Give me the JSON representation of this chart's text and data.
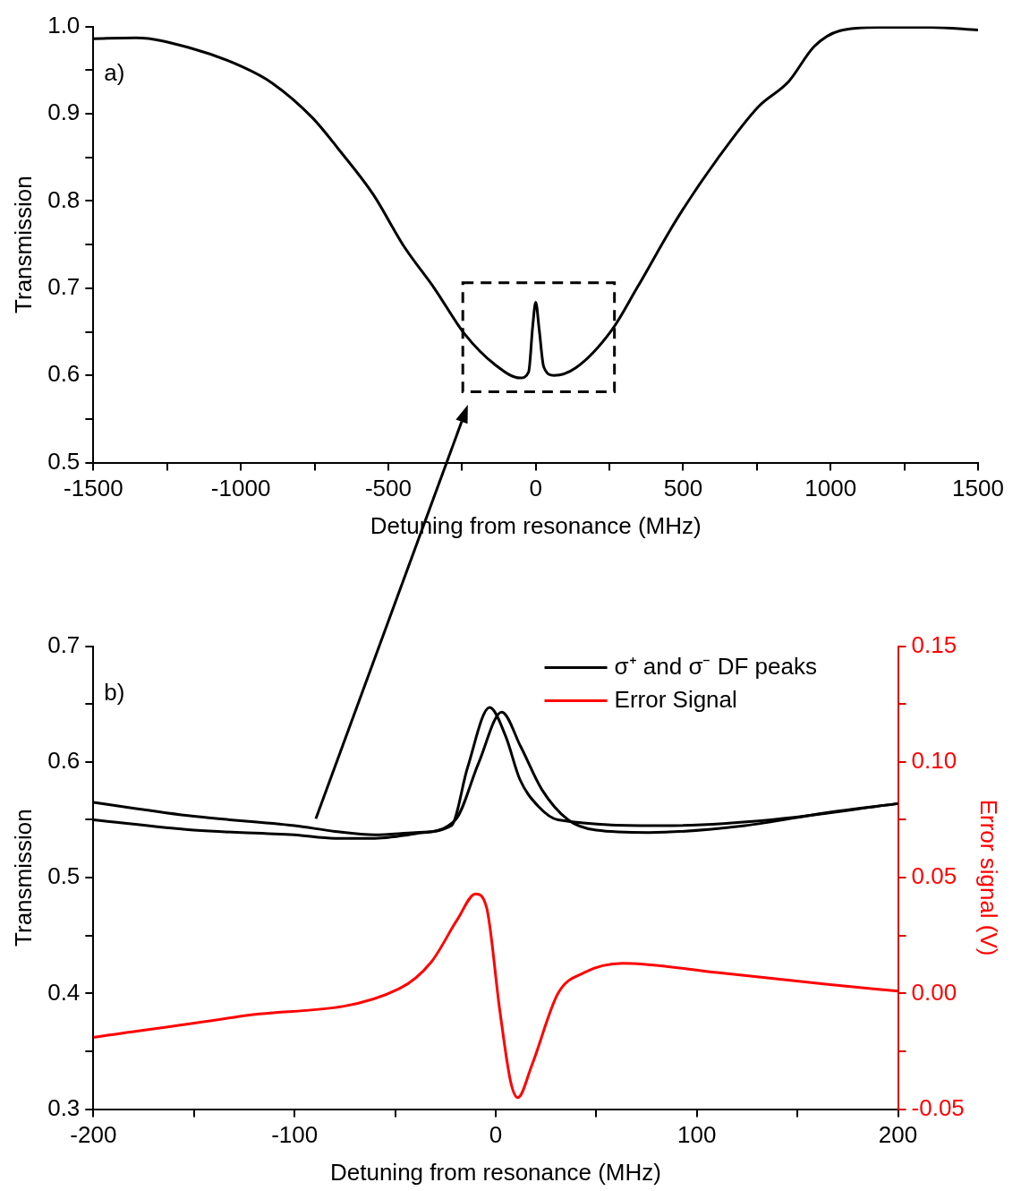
{
  "chart_data": [
    {
      "type": "line",
      "xlabel": "Detuning from resonance (MHz)",
      "ylabel": "Transmission",
      "annotations": [
        "a)"
      ],
      "color": "#000000",
      "marker": "none",
      "grid": false,
      "x": [
        -1500,
        -1356,
        -1167,
        -996,
        -893,
        -756,
        -670,
        -550,
        -447,
        -344,
        -240,
        -137,
        -52,
        -24,
        -10,
        0,
        12,
        27,
        62,
        137,
        258,
        343,
        480,
        618,
        755,
        858,
        944,
        1030,
        1167,
        1338,
        1500
      ],
      "values": [
        0.986,
        0.987,
        0.975,
        0.954,
        0.935,
        0.895,
        0.86,
        0.807,
        0.748,
        0.7,
        0.647,
        0.612,
        0.597,
        0.604,
        0.657,
        0.684,
        0.652,
        0.61,
        0.6,
        0.609,
        0.652,
        0.7,
        0.78,
        0.849,
        0.908,
        0.937,
        0.977,
        0.995,
        0.999,
        0.999,
        0.996
      ],
      "xlim": [
        -1500,
        1500
      ],
      "xticks": [
        -1500,
        {
          "value": -1250,
          "label": null
        },
        -1000,
        {
          "value": -750,
          "label": null
        },
        -500,
        {
          "value": -250,
          "label": null
        },
        0,
        {
          "value": 250,
          "label": null
        },
        500,
        {
          "value": 750,
          "label": null
        },
        1000,
        {
          "value": 1250,
          "label": null
        },
        1500
      ],
      "ylim": [
        0.5,
        1.0
      ],
      "yticks": [
        0.5,
        {
          "value": 0.55,
          "label": null
        },
        0.6,
        {
          "value": 0.65,
          "label": null
        },
        0.7,
        {
          "value": 0.75,
          "label": null
        },
        0.8,
        {
          "value": 0.85,
          "label": null
        },
        0.9,
        {
          "value": 0.95,
          "label": null
        },
        {
          "value": 1,
          "label": "1.0"
        }
      ]
    },
    {
      "type": "line",
      "xlabel": "Detuning from resonance (MHz)",
      "ylabel": "Transmission",
      "y2label": "Error signal (V)",
      "annotations": [
        "b)"
      ],
      "marker": "none",
      "grid": false,
      "legend": "top right",
      "series": [
        {
          "name": "σ⁺ and σ⁻ DF peaks",
          "color": "#000000",
          "x": [
            -200,
            -150,
            -100,
            -80,
            -60,
            -40,
            -22,
            -14,
            -3,
            5,
            12,
            21,
            31,
            84,
            137,
            200
          ],
          "values": [
            0.565,
            0.553,
            0.545,
            0.54,
            0.537,
            0.539,
            0.545,
            0.595,
            0.647,
            0.622,
            0.585,
            0.562,
            0.55,
            0.545,
            0.55,
            0.564
          ]
        },
        {
          "color": "#000000",
          "x": [
            -200,
            -150,
            -100,
            -80,
            -60,
            -40,
            -20,
            -8.5,
            3,
            12.5,
            23,
            36,
            50,
            76,
            124,
            164,
            200
          ],
          "values": [
            0.55,
            0.541,
            0.537,
            0.534,
            0.534,
            0.538,
            0.55,
            0.599,
            0.643,
            0.613,
            0.576,
            0.55,
            0.541,
            0.539,
            0.545,
            0.556,
            0.564
          ]
        },
        {
          "name": "Error Signal",
          "color": "#ff0000",
          "axis": "y2",
          "x": [
            -200,
            -128,
            -48,
            -32,
            -19,
            -10,
            -4.5,
            2,
            7.4,
            11,
            18,
            31,
            44,
            63,
            110,
            164,
            200
          ],
          "values": [
            -0.019,
            -0.01,
            0.002,
            0.0136,
            0.032,
            0.043,
            0.037,
            -0.007,
            -0.038,
            -0.045,
            -0.031,
            0.0,
            0.009,
            0.013,
            0.009,
            0.004,
            0.001
          ]
        }
      ],
      "xlim": [
        -200,
        200
      ],
      "xticks": [
        -200,
        {
          "value": -150,
          "label": null
        },
        -100,
        {
          "value": -50,
          "label": null
        },
        0,
        {
          "value": 50,
          "label": null
        },
        100,
        {
          "value": 150,
          "label": null
        },
        200
      ],
      "ylim": [
        0.3,
        0.7
      ],
      "yticks": [
        0.3,
        {
          "value": 0.35,
          "label": null
        },
        0.4,
        {
          "value": 0.45,
          "label": null
        },
        0.5,
        {
          "value": 0.55,
          "label": null
        },
        0.6,
        {
          "value": 0.65,
          "label": null
        },
        0.7
      ],
      "y2lim": [
        -0.05,
        0.15
      ],
      "y2ticks": [
        {
          "value": -0.05,
          "label": "-0.05"
        },
        {
          "value": -0.025,
          "label": null
        },
        {
          "value": 0,
          "label": "0.00"
        },
        {
          "value": 0.025,
          "label": null
        },
        {
          "value": 0.05,
          "label": "0.05"
        },
        {
          "value": 0.075,
          "label": null
        },
        {
          "value": 0.1,
          "label": "0.10"
        },
        {
          "value": 0.125,
          "label": null
        },
        {
          "value": 0.15,
          "label": "0.15"
        }
      ]
    }
  ]
}
